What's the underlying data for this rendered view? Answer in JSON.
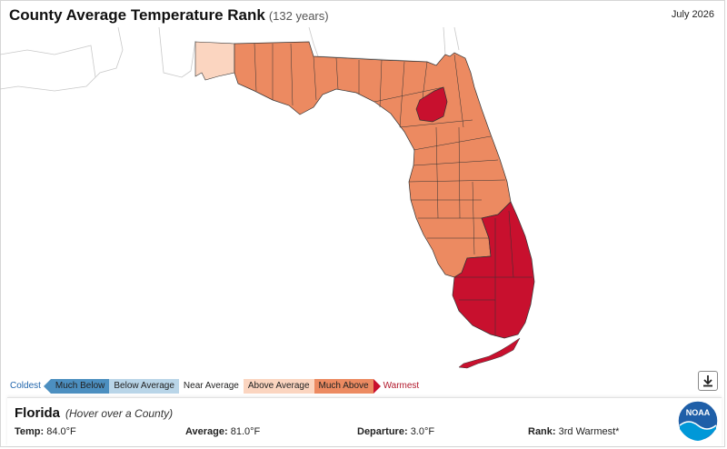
{
  "header": {
    "title": "County Average Temperature Rank",
    "subtitle": "(132 years)",
    "date": "July 2026"
  },
  "legend": {
    "coldest": "Coldest",
    "warmest": "Warmest",
    "categories": [
      {
        "label": "Much Below",
        "color": "#4c8fc0"
      },
      {
        "label": "Below Average",
        "color": "#b9d5e8"
      },
      {
        "label": "Near Average",
        "color": "#ffffff"
      },
      {
        "label": "Above Average",
        "color": "#fbd5c0"
      },
      {
        "label": "Much Above",
        "color": "#ec8a61"
      }
    ],
    "record_warmest_color": "#c8102e"
  },
  "map_colors": {
    "land_outline": "#c8c8c8",
    "county_border": "#333333",
    "much_above": "#ec8a61",
    "above_average": "#fbd5c0",
    "record_warmest": "#c8102e"
  },
  "info": {
    "state": "Florida",
    "hint": "(Hover over a County)",
    "temp_label": "Temp:",
    "temp_value": "84.0°F",
    "average_label": "Average:",
    "average_value": "81.0°F",
    "departure_label": "Departure:",
    "departure_value": "3.0°F",
    "rank_label": "Rank:",
    "rank_value": "3rd Warmest*"
  },
  "logo": {
    "text": "NOAA",
    "icon": "noaa-logo-icon"
  },
  "download": {
    "icon": "download-icon"
  }
}
